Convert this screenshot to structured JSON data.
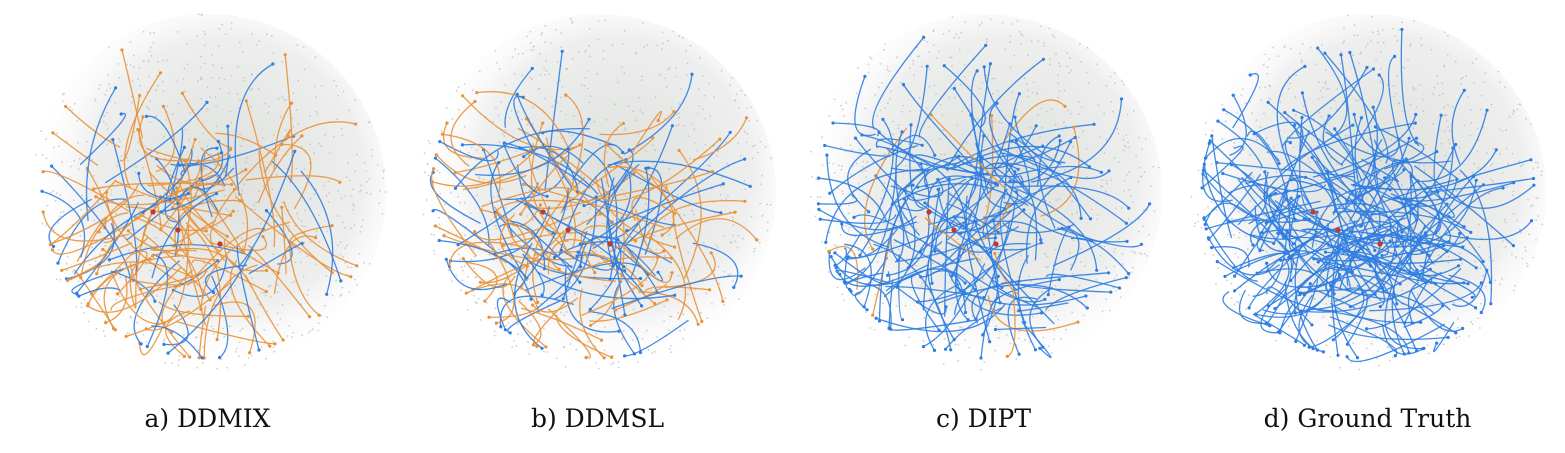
{
  "panels": [
    {
      "caption": "a) DDMIX",
      "blue_share": 0.3,
      "edge_count": 150
    },
    {
      "caption": "b) DDMSL",
      "blue_share": 0.45,
      "edge_count": 160
    },
    {
      "caption": "c) DIPT",
      "blue_share": 0.9,
      "edge_count": 180
    },
    {
      "caption": "d) Ground Truth",
      "blue_share": 1.0,
      "edge_count": 240
    }
  ],
  "colors": {
    "blue_edge": "#2f7de1",
    "orange_edge": "#e8923a",
    "node": "#b9b9b9",
    "source_node": "#c0392b",
    "haze": "#d8dbd8"
  }
}
